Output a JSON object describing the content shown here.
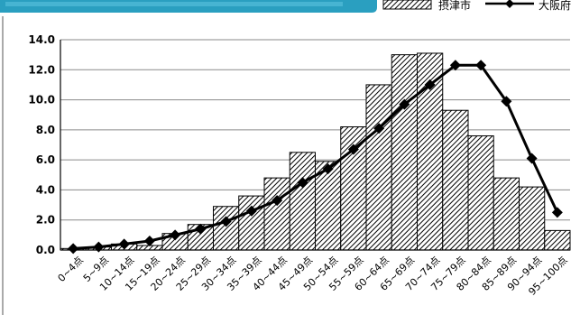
{
  "chart_data": {
    "type": "bar",
    "title": "",
    "xlabel": "",
    "ylabel": "",
    "ylim": [
      0,
      14
    ],
    "yticks": [
      "0.0",
      "2.0",
      "4.0",
      "6.0",
      "8.0",
      "10.0",
      "12.0",
      "14.0"
    ],
    "grid": true,
    "legend_position": "top-right",
    "categories": [
      "0~4点",
      "5~9点",
      "10~14点",
      "15~19点",
      "20~24点",
      "25~29点",
      "30~34点",
      "35~39点",
      "40~44点",
      "45~49点",
      "50~54点",
      "55~59点",
      "60~64点",
      "65~69点",
      "70~74点",
      "75~79点",
      "80~84点",
      "85~89点",
      "90~94点",
      "95~100点"
    ],
    "series": [
      {
        "name": "摂津市",
        "type": "bar",
        "pattern": "diagonal-hatch",
        "values": [
          0.1,
          0.2,
          0.4,
          0.3,
          1.1,
          1.7,
          2.9,
          3.6,
          4.8,
          6.5,
          5.9,
          8.2,
          11.0,
          13.0,
          13.1,
          9.3,
          7.6,
          4.8,
          4.2,
          1.3
        ]
      },
      {
        "name": "大阪府",
        "type": "line",
        "color": "#000000",
        "marker": "diamond",
        "values": [
          0.1,
          0.2,
          0.4,
          0.6,
          1.0,
          1.4,
          1.9,
          2.6,
          3.3,
          4.5,
          5.4,
          6.7,
          8.1,
          9.7,
          11.0,
          12.3,
          12.3,
          9.9,
          6.1,
          2.5
        ]
      }
    ]
  },
  "header": {
    "banner_color": "#2a9fc0"
  }
}
